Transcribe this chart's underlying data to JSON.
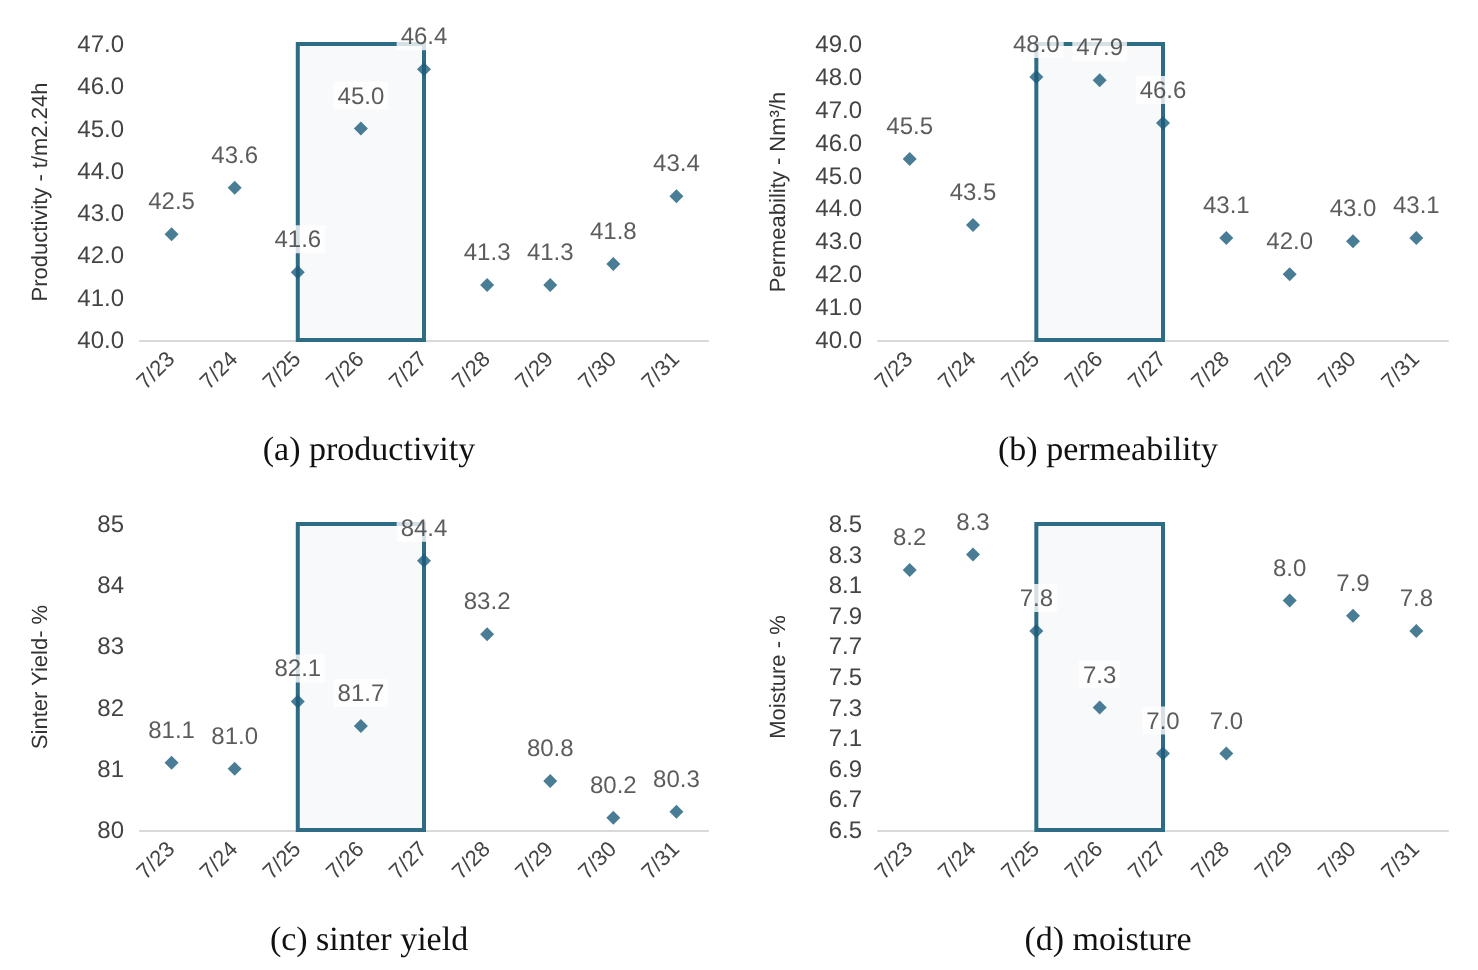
{
  "chart_data": [
    {
      "type": "scatter",
      "title": "(a) productivity",
      "ylabel": "Productivity - t/m2.24h",
      "categories": [
        "7/23",
        "7/24",
        "7/25",
        "7/26",
        "7/27",
        "7/28",
        "7/29",
        "7/30",
        "7/31"
      ],
      "series": [
        {
          "color": "#1b5c7a",
          "values": [
            42.5,
            43.6,
            41.6,
            45.0,
            46.4,
            41.3,
            41.3,
            41.8,
            43.4
          ],
          "value_labels": [
            "42.5",
            "43.6",
            "41.6",
            "45.0",
            "46.4",
            "41.3",
            "41.3",
            "41.8",
            "43.4"
          ]
        }
      ],
      "ylim": [
        40,
        47
      ],
      "yticks": [
        {
          "value": 40,
          "label": "40.0"
        },
        {
          "value": 41,
          "label": "41.0"
        },
        {
          "value": 42,
          "label": "42.0"
        },
        {
          "value": 43,
          "label": "43.0"
        },
        {
          "value": 44,
          "label": "44.0"
        },
        {
          "value": 45,
          "label": "45.0"
        },
        {
          "value": 46,
          "label": "46.0"
        },
        {
          "value": 47,
          "label": "47.0"
        }
      ],
      "marker": "diamond",
      "grid": false,
      "bands": [
        {
          "axis": "x",
          "from": "7/25",
          "to": "7/27",
          "color": "#2e6b85"
        }
      ]
    },
    {
      "type": "scatter",
      "title": "(b) permeability",
      "ylabel": "Permeability - Nm³/h",
      "categories": [
        "7/23",
        "7/24",
        "7/25",
        "7/26",
        "7/27",
        "7/28",
        "7/29",
        "7/30",
        "7/31"
      ],
      "series": [
        {
          "color": "#1b5c7a",
          "values": [
            45.5,
            43.5,
            48.0,
            47.9,
            46.6,
            43.1,
            42.0,
            43.0,
            43.1
          ],
          "value_labels": [
            "45.5",
            "43.5",
            "48.0",
            "47.9",
            "46.6",
            "43.1",
            "42.0",
            "43.0",
            "43.1"
          ]
        }
      ],
      "ylim": [
        40,
        49
      ],
      "yticks": [
        {
          "value": 40,
          "label": "40.0"
        },
        {
          "value": 41,
          "label": "41.0"
        },
        {
          "value": 42,
          "label": "42.0"
        },
        {
          "value": 43,
          "label": "43.0"
        },
        {
          "value": 44,
          "label": "44.0"
        },
        {
          "value": 45,
          "label": "45.0"
        },
        {
          "value": 46,
          "label": "46.0"
        },
        {
          "value": 47,
          "label": "47.0"
        },
        {
          "value": 48,
          "label": "48.0"
        },
        {
          "value": 49,
          "label": "49.0"
        }
      ],
      "marker": "diamond",
      "grid": false,
      "bands": [
        {
          "axis": "x",
          "from": "7/25",
          "to": "7/27",
          "color": "#2e6b85"
        }
      ]
    },
    {
      "type": "scatter",
      "title": "(c) sinter yield",
      "ylabel": "Sinter Yield- %",
      "categories": [
        "7/23",
        "7/24",
        "7/25",
        "7/26",
        "7/27",
        "7/28",
        "7/29",
        "7/30",
        "7/31"
      ],
      "series": [
        {
          "color": "#1b5c7a",
          "values": [
            81.1,
            81.0,
            82.1,
            81.7,
            84.4,
            83.2,
            80.8,
            80.2,
            80.3
          ],
          "value_labels": [
            "81.1",
            "81.0",
            "82.1",
            "81.7",
            "84.4",
            "83.2",
            "80.8",
            "80.2",
            "80.3"
          ]
        }
      ],
      "ylim": [
        80,
        85
      ],
      "yticks": [
        80,
        81,
        82,
        83,
        84,
        85
      ],
      "marker": "diamond",
      "grid": false,
      "bands": [
        {
          "axis": "x",
          "from": "7/25",
          "to": "7/27",
          "color": "#2e6b85"
        }
      ]
    },
    {
      "type": "scatter",
      "title": "(d) moisture",
      "ylabel": "Moisture - %",
      "categories": [
        "7/23",
        "7/24",
        "7/25",
        "7/26",
        "7/27",
        "7/28",
        "7/29",
        "7/30",
        "7/31"
      ],
      "series": [
        {
          "color": "#1b5c7a",
          "values": [
            8.2,
            8.3,
            7.8,
            7.3,
            7.0,
            7.0,
            8.0,
            7.9,
            7.8
          ],
          "value_labels": [
            "8.2",
            "8.3",
            "7.8",
            "7.3",
            "7.0",
            "7.0",
            "8.0",
            "7.9",
            "7.8"
          ]
        }
      ],
      "ylim": [
        6.5,
        8.5
      ],
      "yticks": [
        6.5,
        6.7,
        6.9,
        7.1,
        7.3,
        7.5,
        7.7,
        7.9,
        8.1,
        8.3,
        8.5
      ],
      "marker": "diamond",
      "grid": false,
      "bands": [
        {
          "axis": "x",
          "from": "7/25",
          "to": "7/27",
          "color": "#2e6b85"
        }
      ]
    }
  ]
}
